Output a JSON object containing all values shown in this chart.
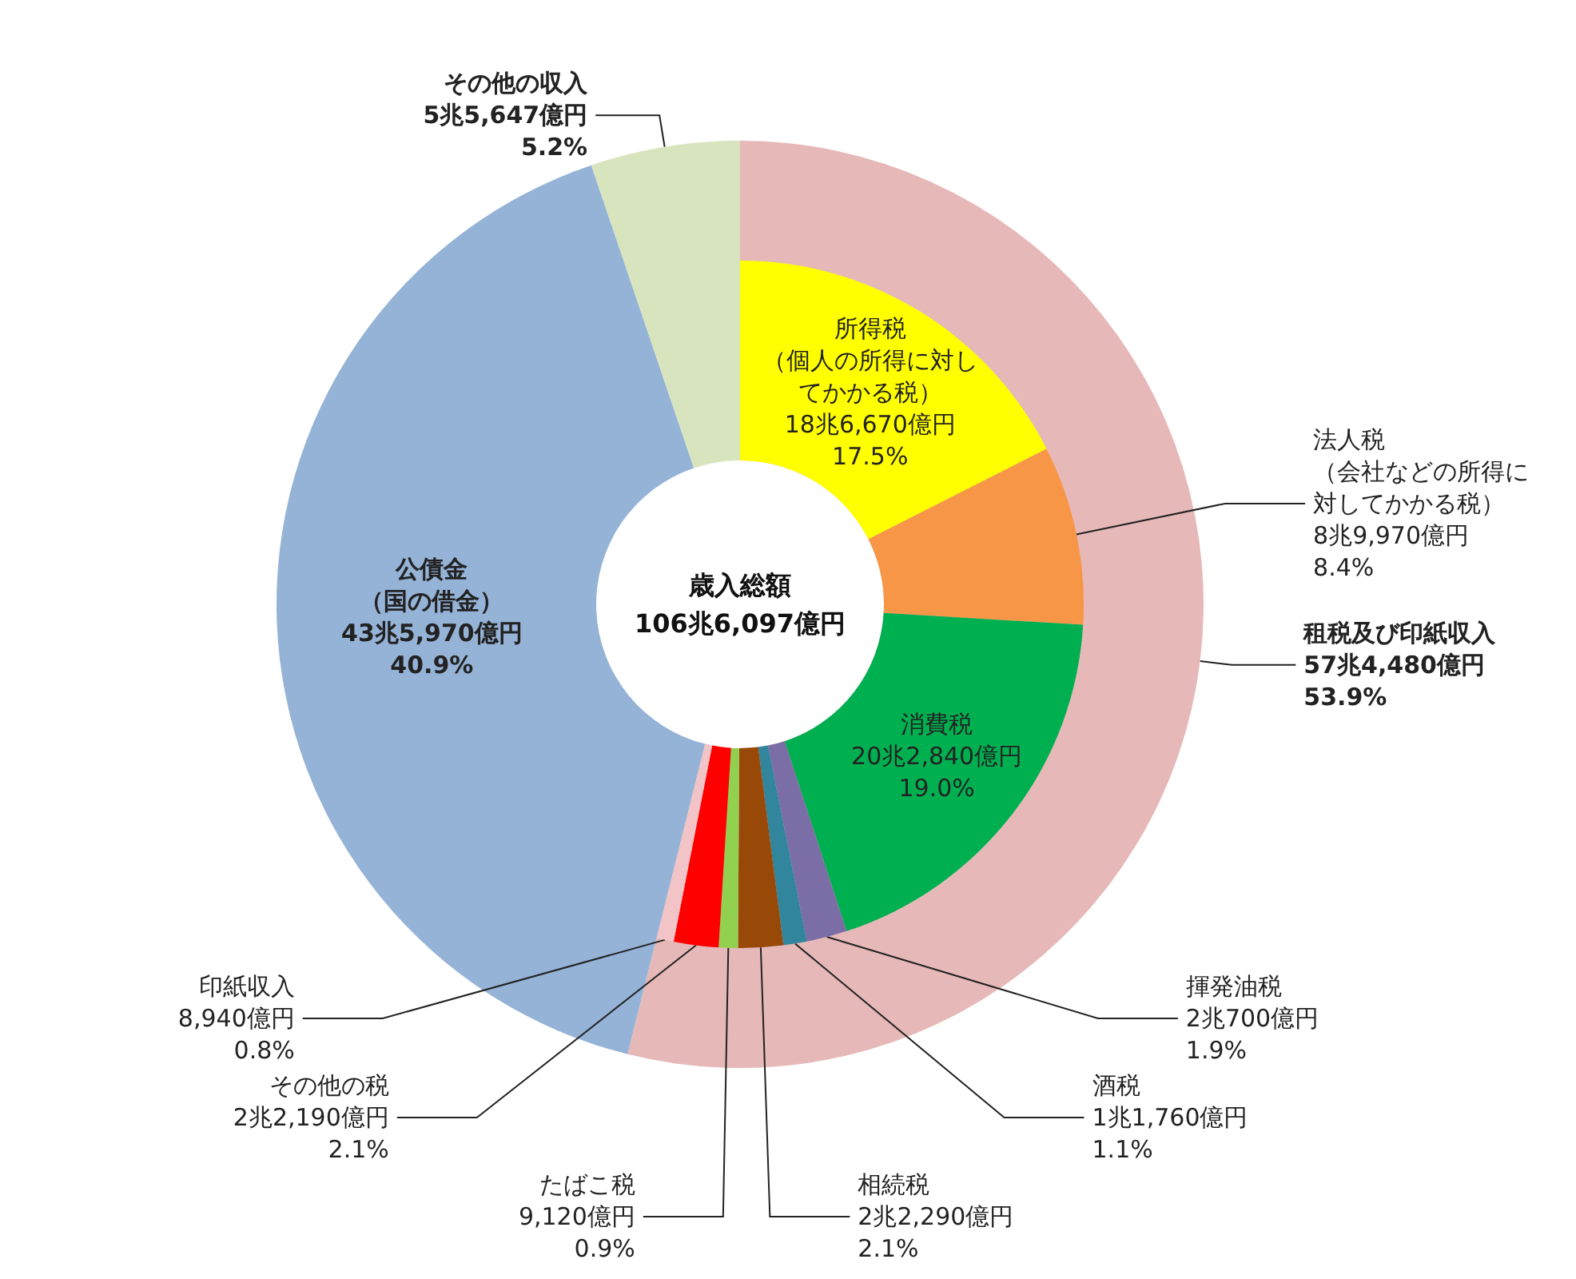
{
  "chart_data": [
    {
      "type": "donut",
      "title": "歳入総額\n106兆6,097億円",
      "categories": [
        "租税及び印紙収入",
        "公債金（国の借金）",
        "その他の収入"
      ],
      "values": [
        53.9,
        40.9,
        5.2
      ],
      "colors": [
        "#e6b9b8",
        "#95b3d7",
        "#d7e4bd"
      ],
      "value_labels": [
        "57兆4,480億円\n53.9%",
        "43兆5,970億円\n40.9%",
        "5兆5,647億円\n5.2%"
      ]
    },
    {
      "type": "donut",
      "categories": [
        "所得税（個人の所得に対してかかる税）",
        "法人税（会社などの所得に対してかかる税）",
        "消費税",
        "揮発油税",
        "酒税",
        "相続税",
        "たばこ税",
        "その他の税",
        "印紙収入"
      ],
      "values": [
        17.5,
        8.4,
        19.0,
        1.9,
        1.1,
        2.1,
        0.9,
        2.1,
        0.8
      ],
      "colors": [
        "#ffff00",
        "#f79646",
        "#00b050",
        "#7b6ea6",
        "#31859c",
        "#984807",
        "#92d050",
        "#ff0000",
        "#f2c4c8"
      ],
      "value_labels": [
        "18兆6,670億円\n17.5%",
        "8兆9,970億円\n8.4%",
        "20兆2,840億円\n19.0%",
        "2兆700億円\n1.9%",
        "1兆1,760億円\n1.1%",
        "2兆2,290億円\n2.1%",
        "9,120億円\n0.9%",
        "2兆2,190億円\n2.1%",
        "8,940億円\n0.8%"
      ]
    }
  ]
}
